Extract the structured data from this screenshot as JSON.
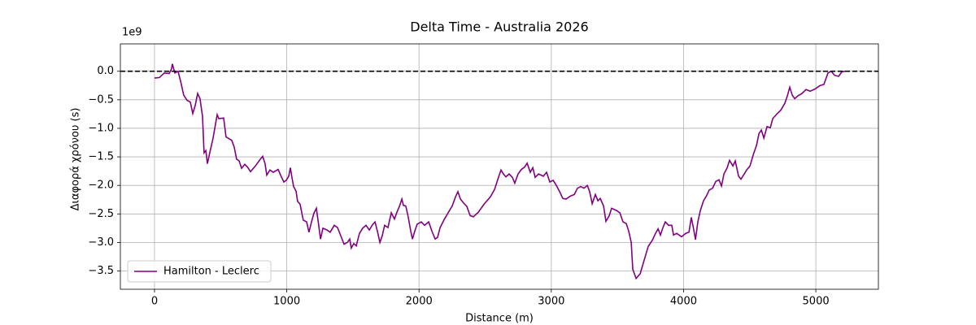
{
  "chart_data": {
    "type": "line",
    "title": "Delta Time - Australia 2026",
    "x_label": "Distance (m)",
    "y_label": "Διαφορά χρόνου (s)",
    "y_offset_label": "1e9",
    "series": [
      {
        "name": "Hamilton - Leclerc",
        "color": "#800080",
        "x": [
          0,
          37,
          74,
          111,
          129,
          135,
          154,
          178,
          197,
          221,
          246,
          271,
          289,
          308,
          326,
          344,
          363,
          375,
          388,
          400,
          418,
          443,
          474,
          486,
          523,
          541,
          584,
          603,
          621,
          640,
          658,
          683,
          707,
          726,
          763,
          800,
          818,
          836,
          849,
          873,
          898,
          935,
          959,
          978,
          996,
          1015,
          1027,
          1039,
          1052,
          1070,
          1082,
          1101,
          1113,
          1125,
          1150,
          1168,
          1187,
          1205,
          1224,
          1236,
          1255,
          1273,
          1304,
          1328,
          1359,
          1384,
          1408,
          1433,
          1458,
          1476,
          1488,
          1507,
          1525,
          1550,
          1574,
          1599,
          1624,
          1648,
          1667,
          1685,
          1704,
          1722,
          1740,
          1765,
          1790,
          1814,
          1833,
          1851,
          1870,
          1882,
          1900,
          1919,
          1937,
          1950,
          1968,
          1986,
          2017,
          2042,
          2073,
          2097,
          2122,
          2140,
          2159,
          2190,
          2220,
          2251,
          2276,
          2294,
          2313,
          2337,
          2362,
          2386,
          2411,
          2448,
          2491,
          2540,
          2571,
          2601,
          2620,
          2638,
          2657,
          2681,
          2706,
          2724,
          2749,
          2774,
          2798,
          2817,
          2841,
          2860,
          2878,
          2903,
          2940,
          2964,
          2989,
          3014,
          3038,
          3063,
          3087,
          3112,
          3143,
          3174,
          3198,
          3223,
          3247,
          3272,
          3290,
          3309,
          3333,
          3352,
          3370,
          3395,
          3413,
          3438,
          3456,
          3493,
          3518,
          3542,
          3567,
          3585,
          3604,
          3616,
          3641,
          3672,
          3702,
          3733,
          3764,
          3788,
          3807,
          3825,
          3844,
          3862,
          3887,
          3911,
          3924,
          3948,
          3985,
          4016,
          4041,
          4059,
          4077,
          4090,
          4108,
          4127,
          4151,
          4176,
          4194,
          4219,
          4244,
          4268,
          4287,
          4305,
          4330,
          4348,
          4373,
          4391,
          4416,
          4434,
          4459,
          4477,
          4502,
          4527,
          4551,
          4570,
          4588,
          4607,
          4631,
          4656,
          4674,
          4705,
          4736,
          4766,
          4785,
          4803,
          4822,
          4840,
          4865,
          4895,
          4926,
          4957,
          4994,
          5031,
          5061,
          5092,
          5117,
          5141,
          5172,
          5197,
          5221
        ],
        "values": [
          -0.12,
          -0.11,
          -0.03,
          -0.04,
          0.04,
          0.13,
          -0.03,
          0.0,
          -0.17,
          -0.42,
          -0.51,
          -0.54,
          -0.74,
          -0.6,
          -0.39,
          -0.48,
          -0.79,
          -1.43,
          -1.39,
          -1.62,
          -1.43,
          -1.17,
          -0.76,
          -0.83,
          -0.82,
          -1.15,
          -1.21,
          -1.33,
          -1.54,
          -1.57,
          -1.7,
          -1.63,
          -1.69,
          -1.76,
          -1.66,
          -1.54,
          -1.49,
          -1.62,
          -1.82,
          -1.73,
          -1.77,
          -1.72,
          -1.85,
          -1.94,
          -1.91,
          -1.84,
          -1.69,
          -1.86,
          -2.02,
          -2.1,
          -2.28,
          -2.33,
          -2.48,
          -2.61,
          -2.64,
          -2.82,
          -2.64,
          -2.49,
          -2.4,
          -2.61,
          -2.94,
          -2.75,
          -2.78,
          -2.82,
          -2.7,
          -2.74,
          -2.88,
          -3.03,
          -3.0,
          -2.94,
          -3.1,
          -3.02,
          -3.06,
          -2.84,
          -2.75,
          -2.7,
          -2.78,
          -2.69,
          -2.64,
          -2.8,
          -3.0,
          -2.88,
          -2.7,
          -2.74,
          -2.48,
          -2.59,
          -2.47,
          -2.37,
          -2.24,
          -2.35,
          -2.36,
          -2.56,
          -2.8,
          -2.94,
          -2.8,
          -2.68,
          -2.64,
          -2.7,
          -2.64,
          -2.8,
          -2.94,
          -2.91,
          -2.74,
          -2.6,
          -2.48,
          -2.36,
          -2.2,
          -2.11,
          -2.24,
          -2.31,
          -2.37,
          -2.53,
          -2.55,
          -2.47,
          -2.33,
          -2.2,
          -2.07,
          -1.86,
          -1.73,
          -1.8,
          -1.85,
          -1.8,
          -1.86,
          -1.96,
          -1.8,
          -1.72,
          -1.68,
          -1.61,
          -1.77,
          -1.69,
          -1.86,
          -1.8,
          -1.84,
          -1.77,
          -1.94,
          -1.91,
          -2.0,
          -2.11,
          -2.23,
          -2.24,
          -2.19,
          -2.16,
          -2.05,
          -2.02,
          -2.05,
          -2.0,
          -2.11,
          -2.32,
          -2.16,
          -2.27,
          -2.23,
          -2.36,
          -2.63,
          -2.53,
          -2.4,
          -2.44,
          -2.48,
          -2.64,
          -2.67,
          -2.8,
          -3.0,
          -3.47,
          -3.63,
          -3.55,
          -3.31,
          -3.07,
          -2.96,
          -2.84,
          -2.76,
          -2.87,
          -2.74,
          -2.64,
          -2.7,
          -2.7,
          -2.87,
          -2.84,
          -2.9,
          -2.84,
          -2.82,
          -2.56,
          -2.78,
          -2.95,
          -2.64,
          -2.44,
          -2.27,
          -2.17,
          -2.08,
          -2.05,
          -1.93,
          -1.9,
          -2.01,
          -1.8,
          -1.69,
          -1.56,
          -1.66,
          -1.57,
          -1.84,
          -1.89,
          -1.8,
          -1.73,
          -1.66,
          -1.46,
          -1.3,
          -1.09,
          -1.03,
          -1.17,
          -0.97,
          -0.99,
          -0.83,
          -0.75,
          -0.68,
          -0.56,
          -0.43,
          -0.28,
          -0.42,
          -0.48,
          -0.43,
          -0.39,
          -0.32,
          -0.35,
          -0.31,
          -0.25,
          -0.23,
          -0.03,
          0.0,
          -0.07,
          -0.09,
          -0.01,
          0.0
        ]
      }
    ],
    "hline": 0,
    "xlim": [
      -258,
      5473
    ],
    "ylim": [
      -3.82,
      0.48
    ],
    "xticks": [
      0,
      1000,
      2000,
      3000,
      4000,
      5000
    ],
    "yticks": [
      {
        "value": 0,
        "label": "0.0"
      },
      {
        "value": -0.5,
        "label": "−0.5"
      },
      {
        "value": -1,
        "label": "−1.0"
      },
      {
        "value": -1.5,
        "label": "−1.5"
      },
      {
        "value": -2,
        "label": "−2.0"
      },
      {
        "value": -2.5,
        "label": "−2.5"
      },
      {
        "value": -3,
        "label": "−3.0"
      },
      {
        "value": -3.5,
        "label": "−3.5"
      }
    ],
    "grid": true,
    "legend": "lower-left"
  }
}
